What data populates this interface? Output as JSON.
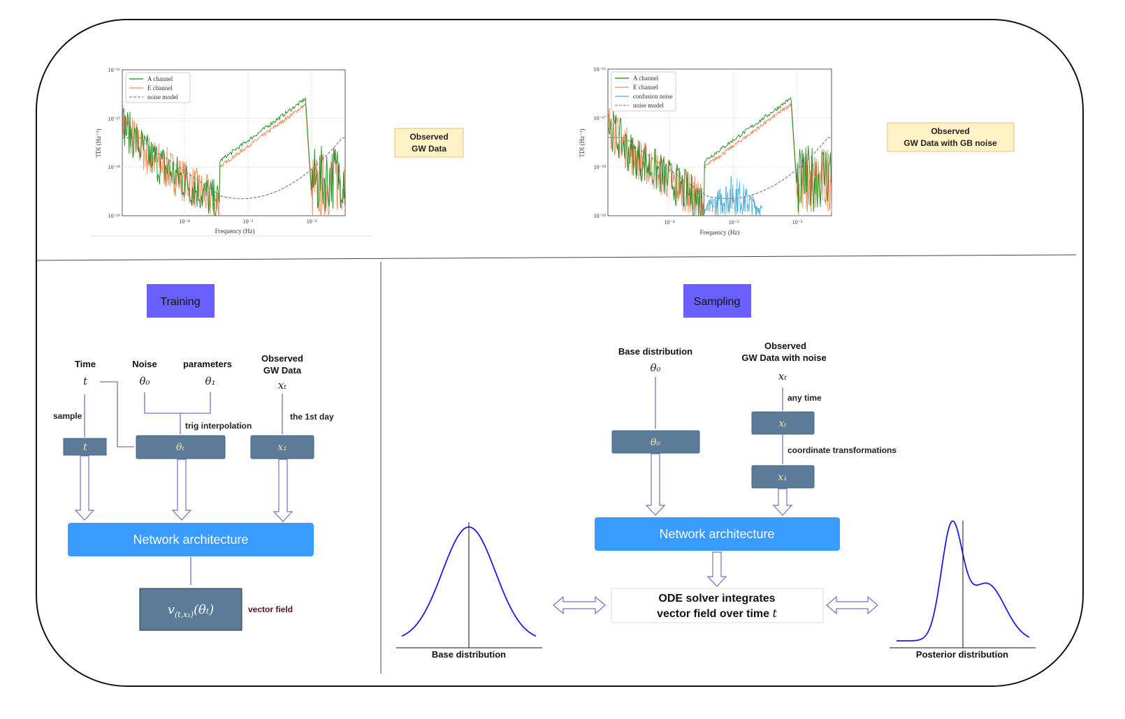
{
  "plots": [
    {
      "legend": [
        "A channel",
        "E channel",
        "noise model"
      ],
      "ylabel": "TDI (Hz⁻¹)",
      "xlabel": "Frequency (Hz)",
      "yticks": [
        "10⁻¹⁶",
        "10⁻¹⁷",
        "10⁻¹⁸",
        "10⁻¹⁹"
      ],
      "xticks": [
        "10⁻⁴",
        "10⁻³",
        "10⁻²"
      ],
      "caption": [
        "Observed",
        "GW Data"
      ]
    },
    {
      "legend": [
        "A channel",
        "E channel",
        "confusion noise",
        "noise model"
      ],
      "ylabel": "TDI (Hz⁻¹)",
      "xlabel": "Frequency (Hz)",
      "yticks": [
        "10⁻¹⁶",
        "10⁻¹⁷",
        "10⁻¹⁸",
        "10⁻¹⁹"
      ],
      "xticks": [
        "10⁻⁴",
        "10⁻³",
        "10⁻²"
      ],
      "caption": [
        "Observed",
        "GW Data with GB noise"
      ]
    }
  ],
  "colors": {
    "a_channel": "#1a8a1a",
    "e_channel": "#ee8a5a",
    "confusion": "#4ab0d8",
    "noise": "#888888",
    "tag": "#6a60ff",
    "network": "#3a9bff",
    "box": "#5b7b99",
    "arrow": "#7a6cc0"
  },
  "training": {
    "title": "Training",
    "time_label": "Time",
    "time_sym": "t",
    "noise_label": "Noise",
    "noise_sym": "θ₀",
    "params_label": "parameters",
    "params_sym": "θ₁",
    "obs_label": [
      "Observed",
      "GW Data"
    ],
    "obs_sym": "xₜ",
    "sample": "sample",
    "trig": "trig interpolation",
    "first_day": "the 1st day",
    "box_t": "t",
    "box_theta": "θₜ",
    "box_x": "x₁",
    "network": "Network architecture",
    "vf_main": "v",
    "vf_sub": "(t,x₁)",
    "vf_rest": "(θₜ)",
    "vector_field": "vector field"
  },
  "sampling": {
    "title": "Sampling",
    "base_label": "Base distribution",
    "base_sym": "θ₀",
    "obs_label": [
      "Observed",
      "GW Data with noise"
    ],
    "obs_sym": "xₜ",
    "any_time": "any time",
    "coord": "coordinate transformations",
    "box_theta": "θ₀",
    "box_xt": "xₜ",
    "box_x1": "x₁",
    "network": "Network architecture",
    "ode": [
      "ODE solver integrates",
      "vector field over time "
    ],
    "ode_t": "t",
    "base_dist": "Base distribution",
    "posterior": "Posterior distribution"
  }
}
